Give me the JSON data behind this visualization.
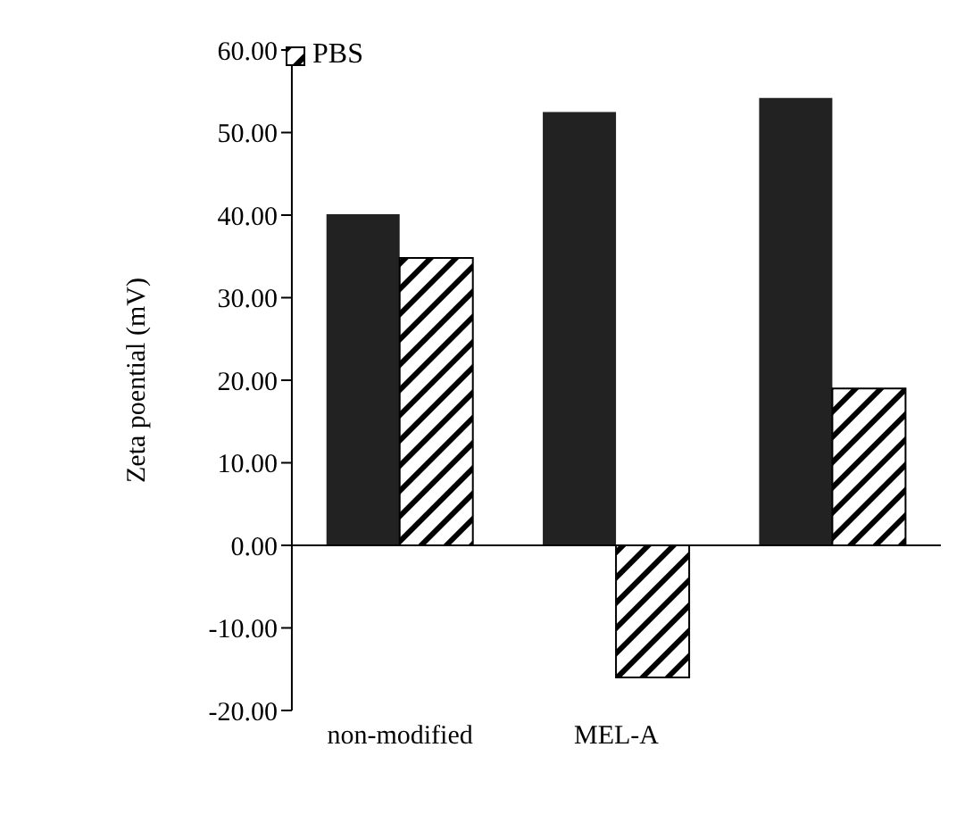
{
  "chart_data": {
    "type": "bar",
    "ylabel": "Zeta poential (mV)",
    "categories": [
      "non-modified",
      "MEL-A",
      null
    ],
    "series": [
      {
        "color": "#222222",
        "values": [
          40.1,
          52.5,
          54.2
        ]
      },
      {
        "name": "PBS",
        "color": "#000000",
        "values": [
          34.8,
          -16.0,
          19.0
        ]
      }
    ],
    "ylim": [
      -20,
      60
    ],
    "yticks": [
      {
        "value": -20,
        "label": "-20.00"
      },
      {
        "value": -10,
        "label": "-10.00"
      },
      {
        "value": 0,
        "label": "0.00"
      },
      {
        "value": 10,
        "label": "10.00"
      },
      {
        "value": 20,
        "label": "20.00"
      },
      {
        "value": 30,
        "label": "30.00"
      },
      {
        "value": 40,
        "label": "40.00"
      },
      {
        "value": 50,
        "label": "50.00"
      },
      {
        "value": 60,
        "label": "60.00"
      }
    ],
    "legend": "top left"
  }
}
